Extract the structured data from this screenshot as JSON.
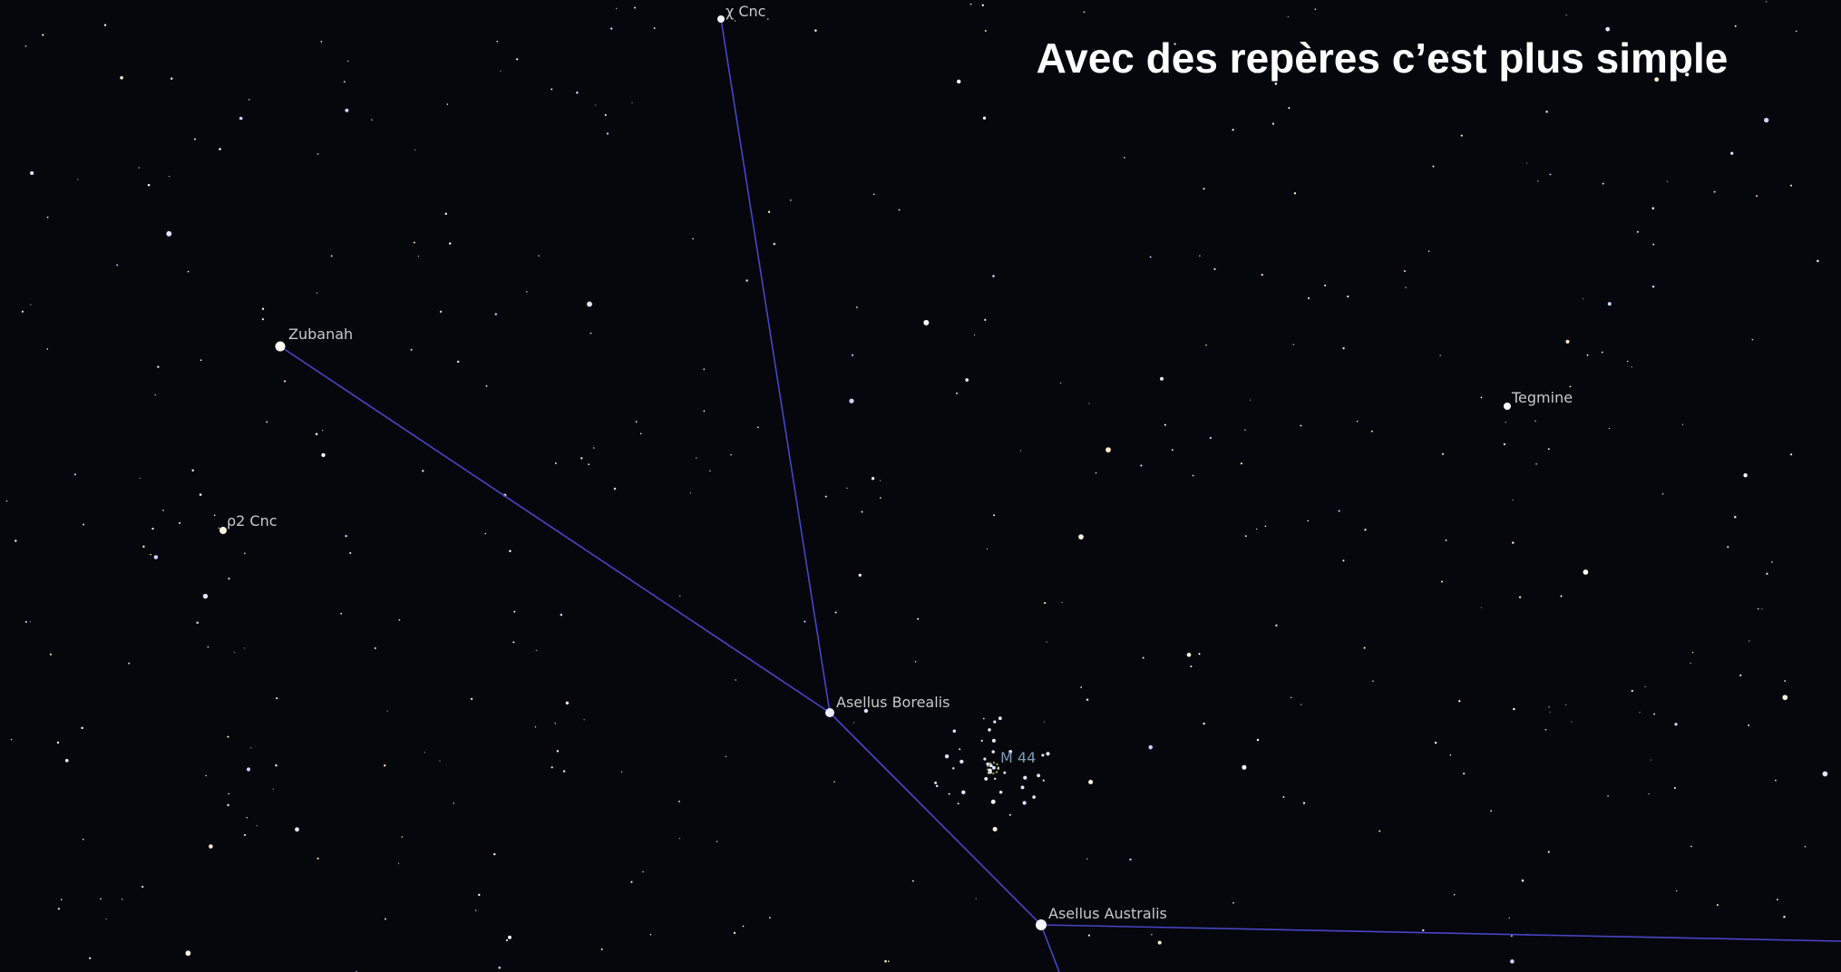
{
  "title": "Avec des repères c’est plus simple",
  "labels": {
    "chi_cnc": "χ Cnc",
    "zubanah": "Zubanah",
    "rho2_cnc": "ρ2 Cnc",
    "tegmine": "Tegmine",
    "asellus_borealis": "Asellus Borealis",
    "m44": "M 44",
    "asellus_australis": "Asellus Australis"
  }
}
